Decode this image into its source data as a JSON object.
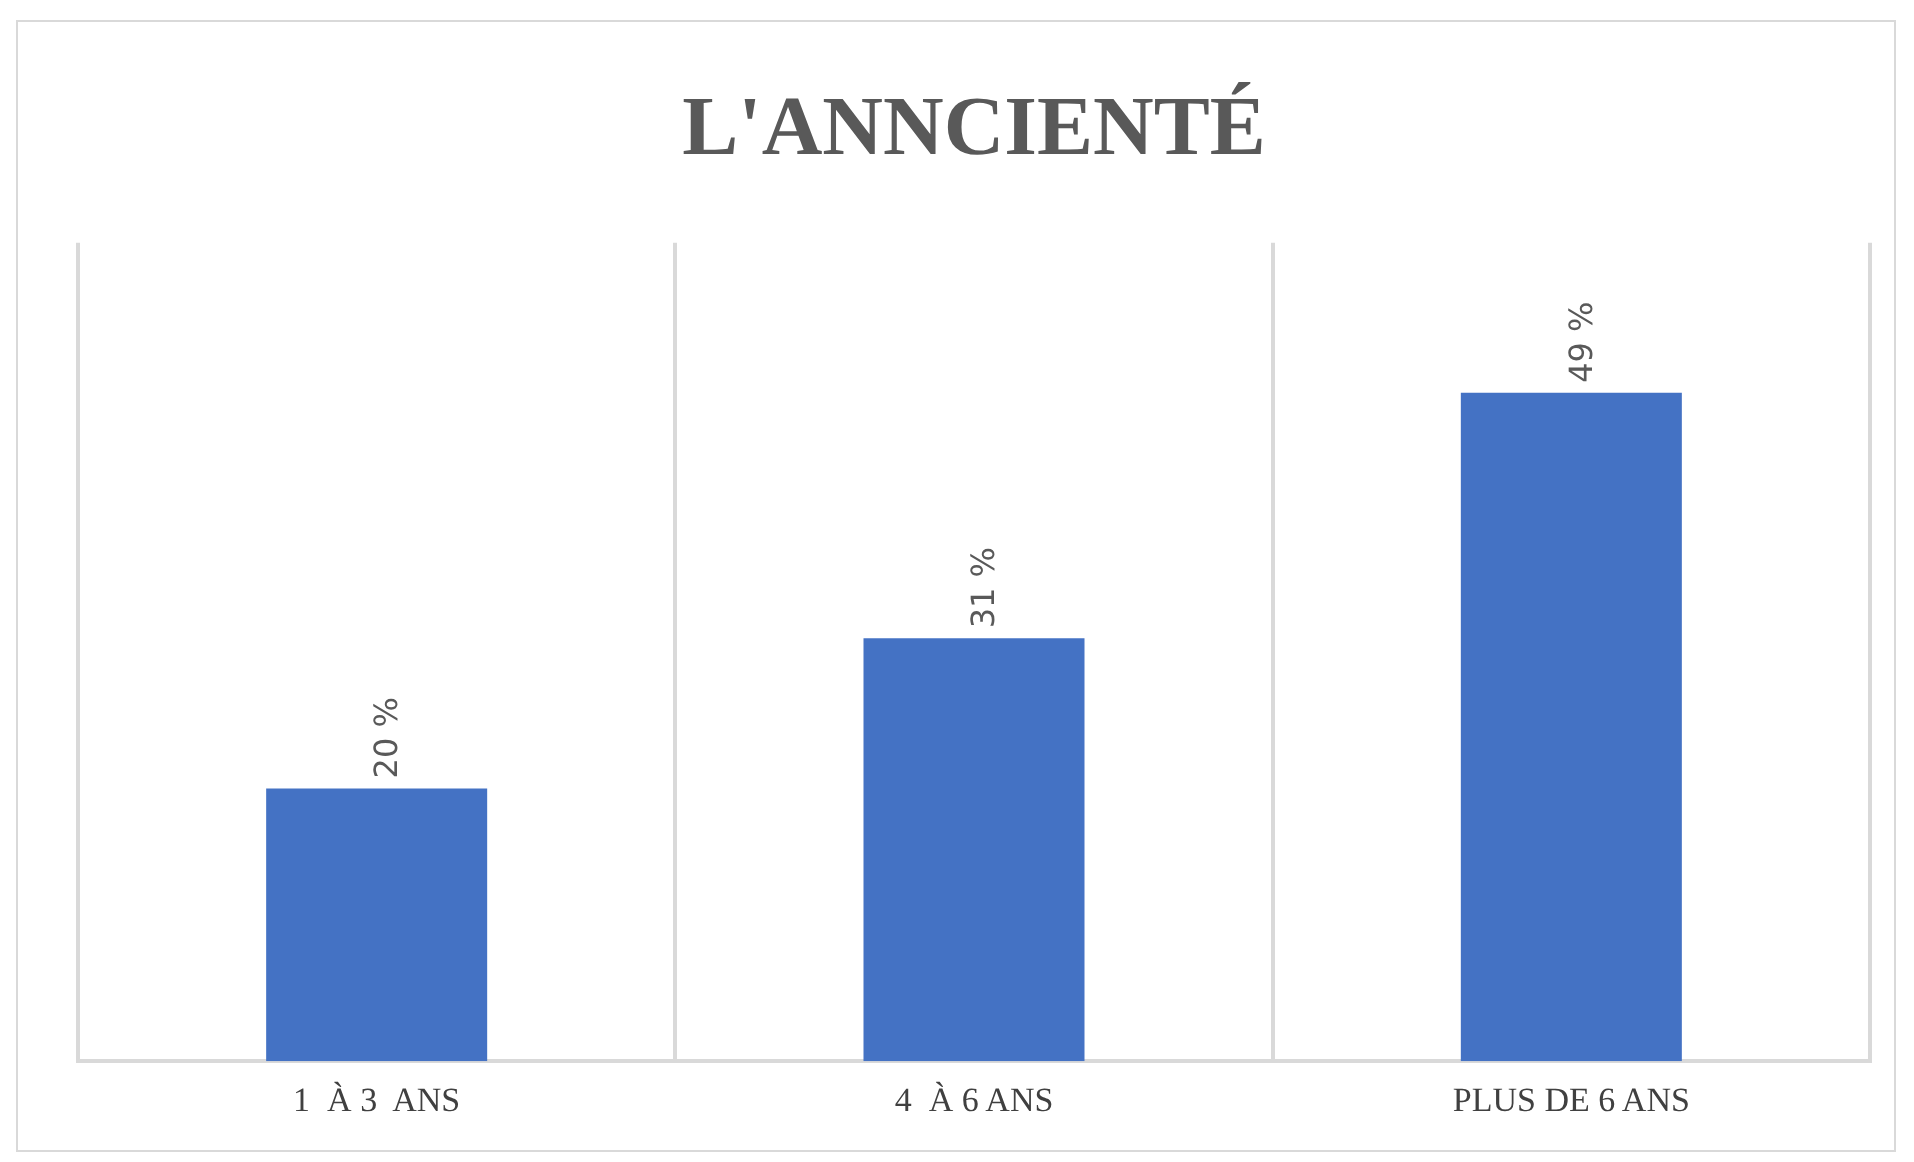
{
  "chart_data": {
    "type": "bar",
    "title": "L'ANNCIENTÉ",
    "categories": [
      "1  À 3  ANS",
      "4  À 6 ANS",
      "PLUS DE 6 ANS"
    ],
    "values": [
      20,
      31,
      49
    ],
    "color": "#4472c4",
    "value_labels": [
      "20 %",
      "31 %",
      "49 %"
    ],
    "grid": "x",
    "legend": false
  }
}
